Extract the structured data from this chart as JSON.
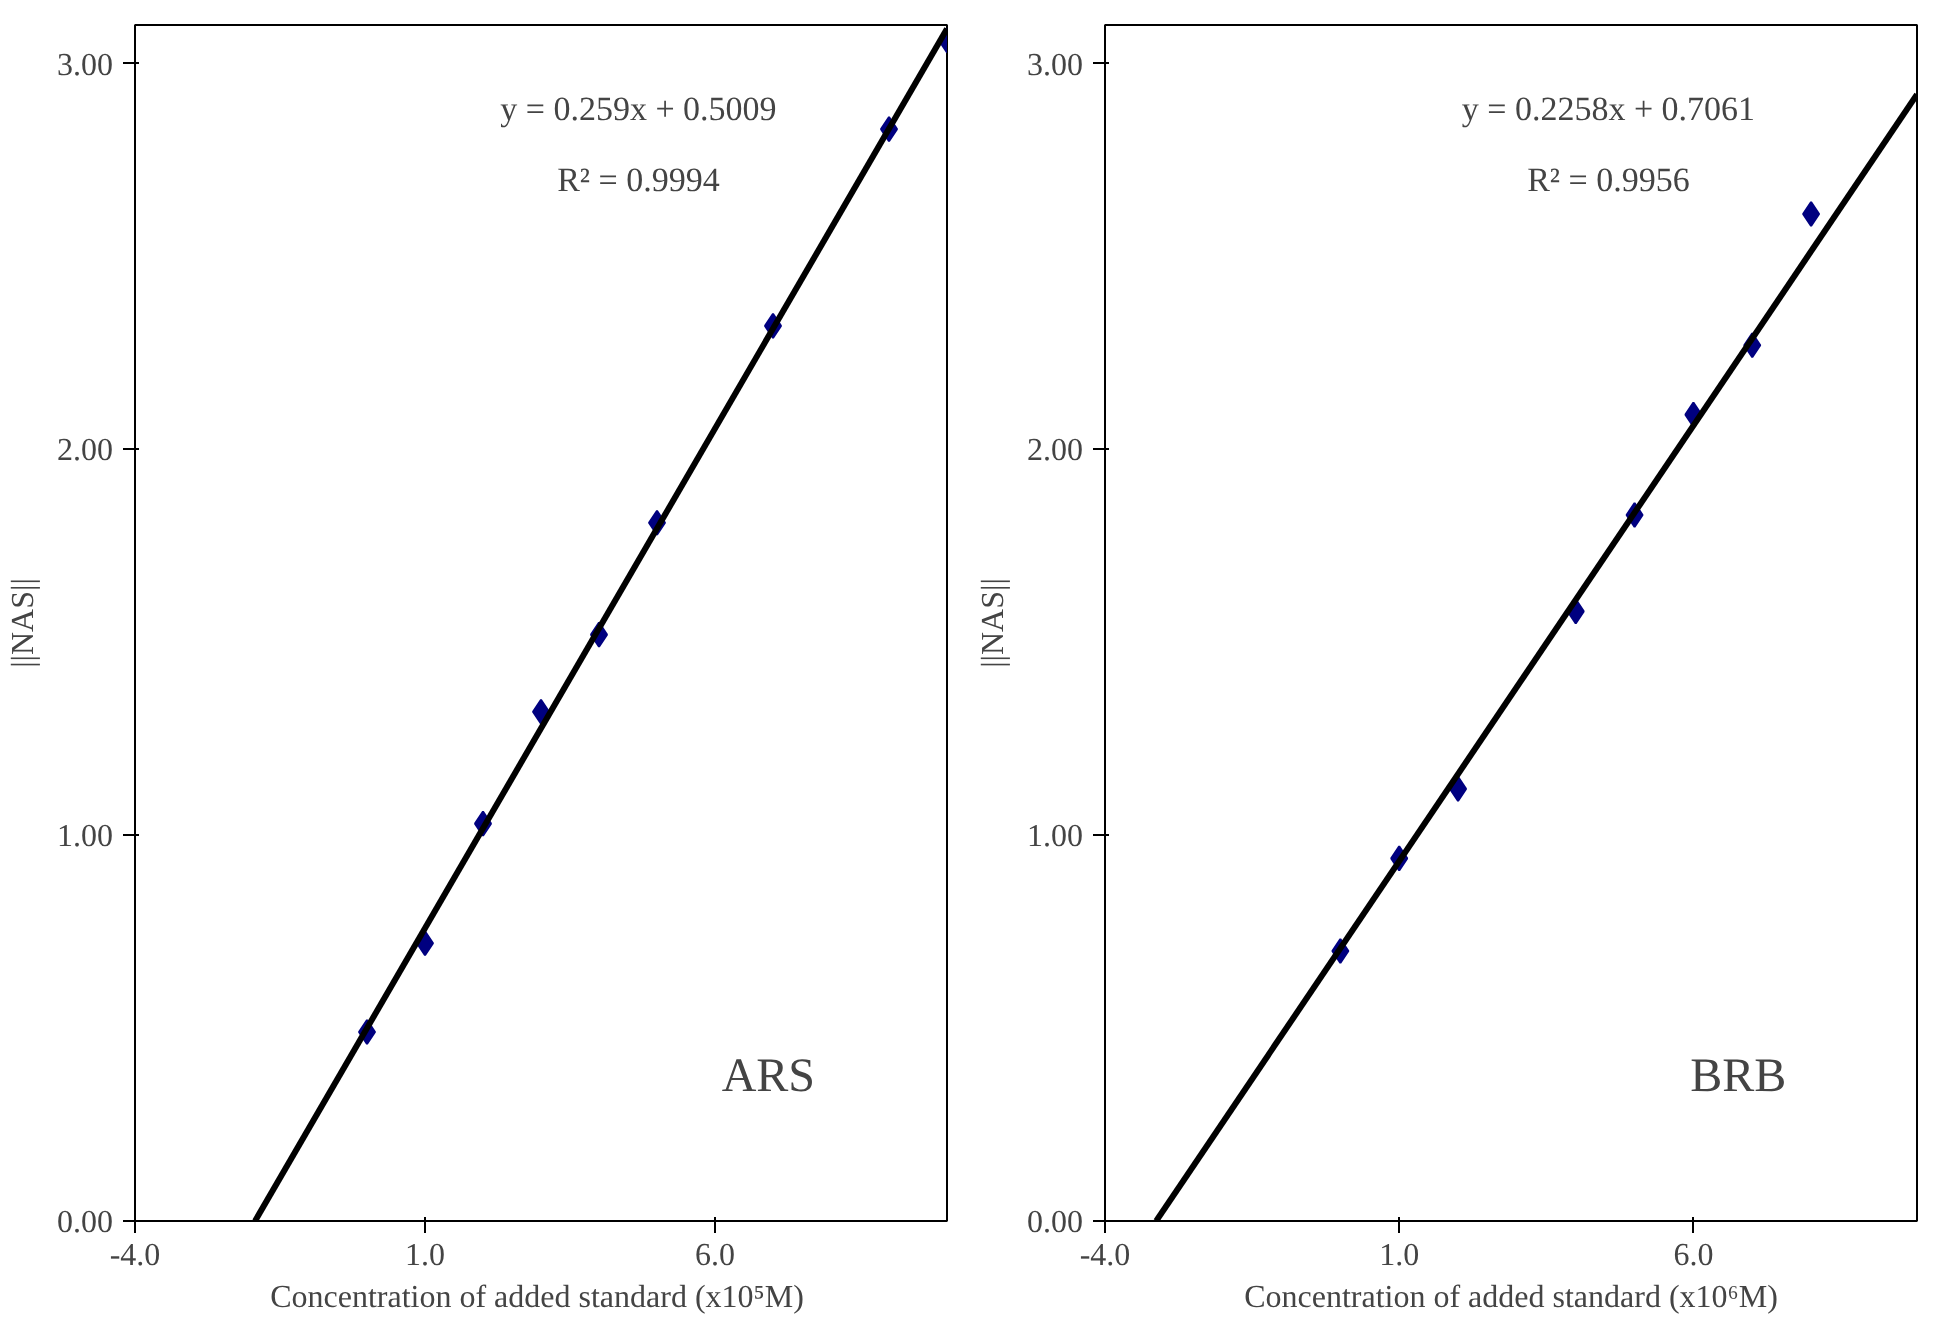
{
  "chart_data": [
    {
      "type": "scatter",
      "xlabel": "Concentration of added standard  (x10⁵M)",
      "ylabel": "||NAS||",
      "xlim": [
        -4,
        10
      ],
      "ylim": [
        0,
        3.1
      ],
      "xticks": [
        {
          "value": -4,
          "label": "-4.0"
        },
        {
          "value": 1,
          "label": "1.0"
        },
        {
          "value": 6,
          "label": "6.0"
        }
      ],
      "yticks": [
        {
          "value": 0,
          "label": "0.00"
        },
        {
          "value": 1,
          "label": "1.00"
        },
        {
          "value": 2,
          "label": "2.00"
        },
        {
          "value": 3,
          "label": "3.00"
        }
      ],
      "grid": false,
      "marker": "diamond",
      "annotations": [
        "y = 0.259x + 0.5009",
        "R² = 0.9994",
        "ARS"
      ],
      "series": [
        {
          "color": "#000080",
          "x": [
            0,
            1,
            2,
            3,
            4,
            5,
            7,
            9,
            10
          ],
          "values": [
            0.49,
            0.72,
            1.03,
            1.32,
            1.52,
            1.81,
            2.32,
            2.83,
            3.06
          ]
        },
        {
          "type": "line",
          "marker": "none",
          "color": "#000000",
          "x": [
            -1.93,
            10
          ],
          "values": [
            0,
            3.09
          ]
        }
      ]
    },
    {
      "type": "scatter",
      "xlabel": "Concentration of added standard (x10⁶M)",
      "ylabel": "||NAS||",
      "xlim": [
        -4,
        9.8
      ],
      "ylim": [
        0,
        3.1
      ],
      "xticks": [
        {
          "value": -4,
          "label": "-4.0"
        },
        {
          "value": 1,
          "label": "1.0"
        },
        {
          "value": 6,
          "label": "6.0"
        }
      ],
      "yticks": [
        {
          "value": 0,
          "label": "0.00"
        },
        {
          "value": 1,
          "label": "1.00"
        },
        {
          "value": 2,
          "label": "2.00"
        },
        {
          "value": 3,
          "label": "3.00"
        }
      ],
      "grid": false,
      "marker": "diamond",
      "annotations": [
        "y = 0.2258x + 0.7061",
        "R² = 0.9956",
        "BRB"
      ],
      "series": [
        {
          "color": "#000080",
          "x": [
            0,
            1,
            2,
            4,
            5,
            6,
            7,
            8
          ],
          "values": [
            0.7,
            0.94,
            1.12,
            1.58,
            1.83,
            2.09,
            2.27,
            2.61
          ]
        },
        {
          "type": "line",
          "marker": "none",
          "color": "#000000",
          "x": [
            -3.13,
            9.8
          ],
          "values": [
            0,
            2.92
          ]
        }
      ]
    }
  ]
}
